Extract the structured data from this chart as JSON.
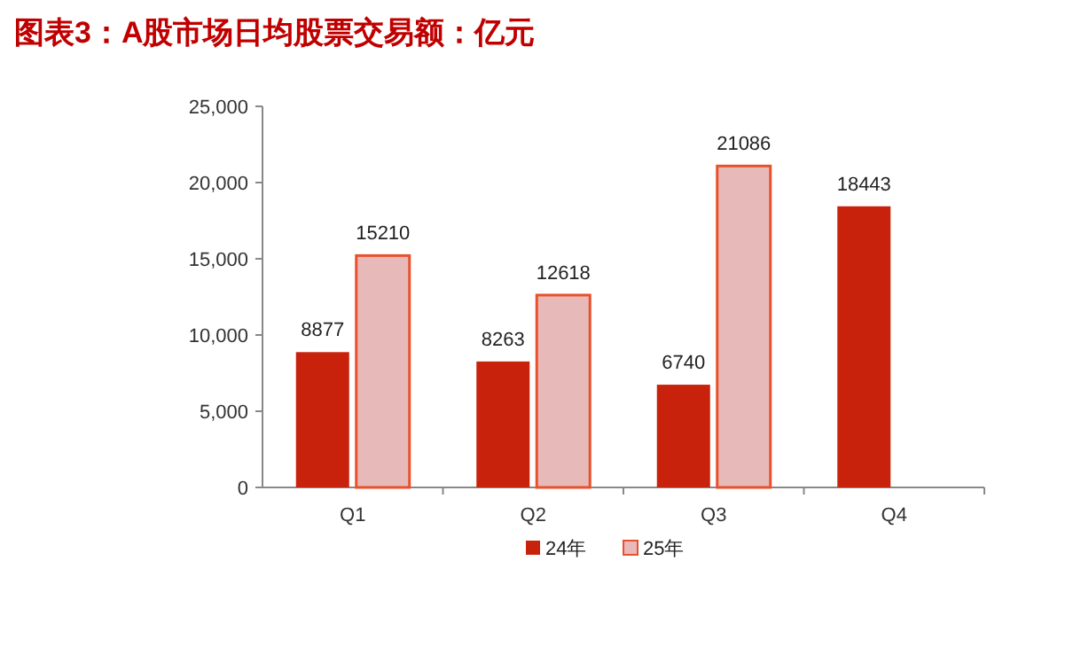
{
  "chart_data": {
    "type": "bar",
    "title": "图表3：A股市场日均股票交易额：亿元",
    "categories": [
      "Q1",
      "Q2",
      "Q3",
      "Q4"
    ],
    "series": [
      {
        "name": "24年",
        "color": "#c9220c",
        "values": [
          8877,
          8263,
          6740,
          18443
        ]
      },
      {
        "name": "25年",
        "color": "#e8b9b9",
        "values": [
          15210,
          12618,
          21086,
          null
        ]
      }
    ],
    "ylim": [
      0,
      25000
    ],
    "yticks": [
      0,
      {
        "value": 5000,
        "label": "5,000"
      },
      {
        "value": 10000,
        "label": "10,000"
      },
      {
        "value": 15000,
        "label": "15,000"
      },
      {
        "value": 20000,
        "label": "20,000"
      },
      {
        "value": 25000,
        "label": "25,000"
      }
    ],
    "grid": false,
    "legend": "bottom",
    "data_labels": true
  }
}
